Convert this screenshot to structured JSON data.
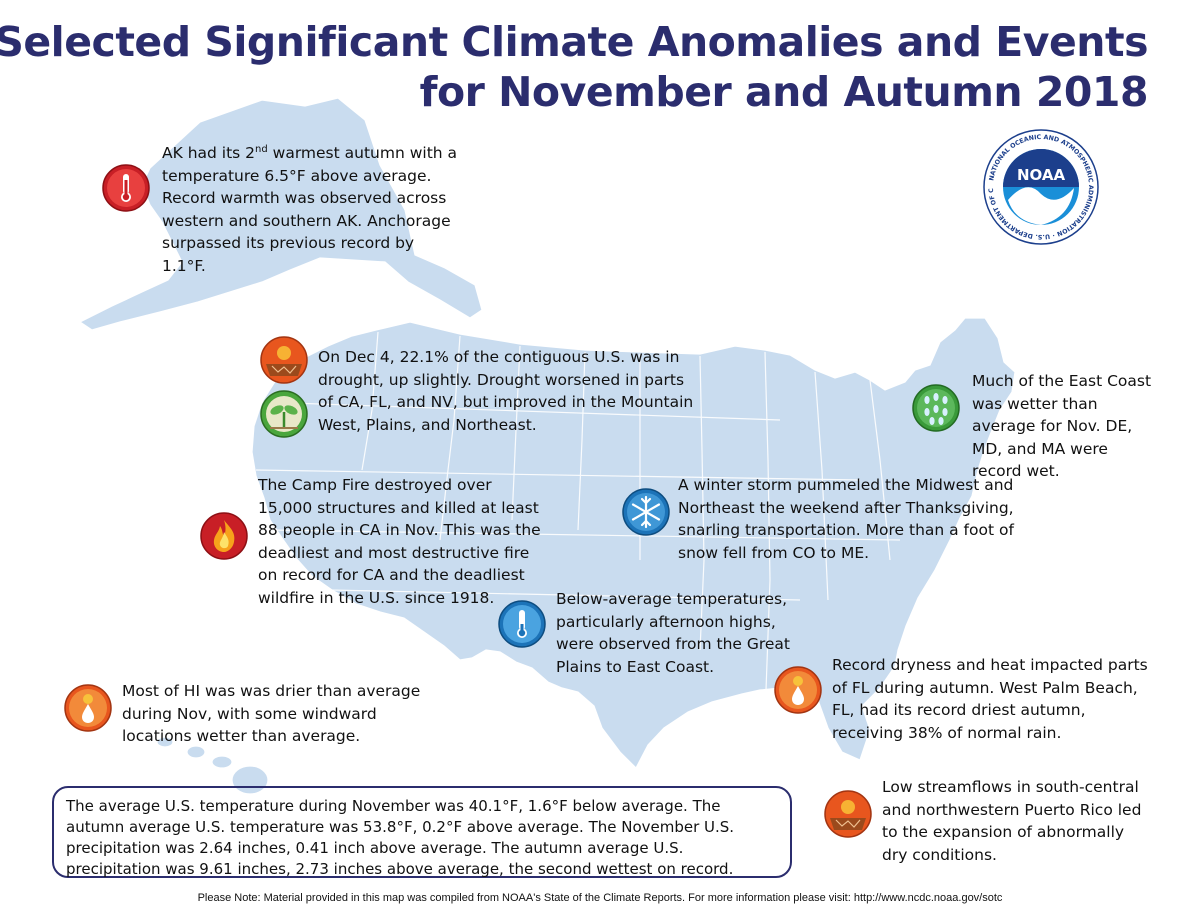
{
  "title": {
    "line1": "U.S. Selected Significant Climate Anomalies and Events",
    "line2": "for November and Autumn 2018"
  },
  "logo": {
    "name": "NOAA",
    "ring_text": "NATIONAL OCEANIC AND ATMOSPHERIC ADMINISTRATION · U.S. DEPARTMENT OF COMMERCE"
  },
  "callouts": {
    "alaska": {
      "icon": "thermometer-warm-icon",
      "pre": "AK had its 2",
      "sup": "nd",
      "post": " warmest autumn with a temperature 6.5°F above average. Record warmth was observed across western and southern AK. Anchorage surpassed its previous record by 1.1°F."
    },
    "drought": {
      "icons": [
        "drought-cracked-earth-icon",
        "drought-improvement-plant-icon"
      ],
      "text": "On Dec 4, 22.1% of the contiguous U.S. was in drought, up slightly. Drought worsened in parts of CA, FL, and NV, but improved in the Mountain West, Plains, and Northeast."
    },
    "east_coast": {
      "icon": "rain-wet-icon",
      "text": "Much of the East Coast was wetter than average for Nov. DE, MD, and MA were record wet."
    },
    "camp_fire": {
      "icon": "wildfire-icon",
      "text": "The Camp Fire destroyed over 15,000 structures and killed at least 88 people in CA in Nov. This was the deadliest and most destructive fire on record for CA and the deadliest wildfire in the U.S. since 1918."
    },
    "winter_storm": {
      "icon": "snowflake-icon",
      "text": "A winter storm pummeled the Midwest and Northeast the weekend after Thanksgiving, snarling transportation. More than a foot of snow fell from CO to ME."
    },
    "below_avg": {
      "icon": "thermometer-cold-icon",
      "text": "Below-average temperatures, particularly afternoon highs, were observed from the Great Plains to East Coast."
    },
    "florida": {
      "icon": "dry-heat-drop-icon",
      "text": "Record dryness and heat impacted parts of FL during autumn. West Palm Beach, FL, had its record driest autumn, receiving 38% of normal rain."
    },
    "hawaii": {
      "icon": "dry-drop-icon",
      "text": "Most of HI was was drier than average during Nov, with some windward locations wetter than average."
    },
    "puerto_rico": {
      "icon": "drought-cracked-earth-icon",
      "text": "Low streamflows in south-central and northwestern Puerto Rico led to the expansion of abnormally dry conditions."
    }
  },
  "summary": "The average U.S. temperature during November was 40.1°F, 1.6°F below average. The autumn average U.S. temperature was 53.8°F, 0.2°F above average. The November U.S. precipitation was 2.64 inches, 0.41 inch above average. The autumn average U.S. precipitation was 9.61 inches, 2.73 inches above average, the second wettest on record.",
  "footnote": "Please Note: Material provided in this map was compiled from NOAA's State of the Climate Reports. For more information please visit: http://www.ncdc.noaa.gov/sotc",
  "colors": {
    "map_fill": "#c9dcef",
    "map_border": "#ffffff",
    "title": "#2b2d6e",
    "warm_red": "#d1232a",
    "drought_orange": "#e8561e",
    "green": "#3a9a3a",
    "blue": "#1c73b8"
  }
}
